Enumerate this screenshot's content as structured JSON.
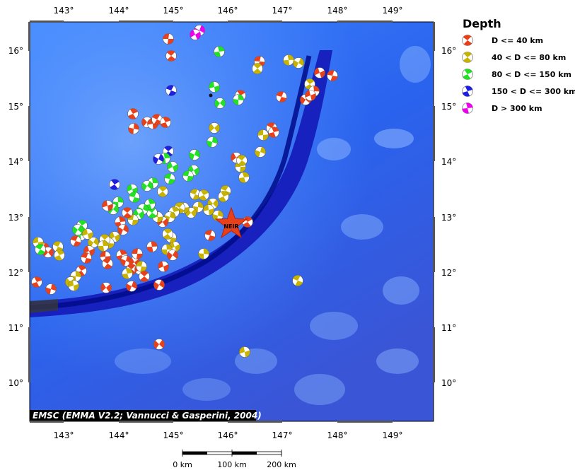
{
  "map": {
    "credit": "EMSC (EMMA V2.2; Vannucci & Gasperini, 2004)",
    "station_label": "NEIR",
    "lon_ticks": [
      "143°",
      "144°",
      "145°",
      "146°",
      "147°",
      "148°",
      "149°"
    ],
    "lat_ticks": [
      "16°",
      "15°",
      "14°",
      "13°",
      "12°",
      "11°",
      "10°"
    ]
  },
  "legend": {
    "title": "Depth",
    "items": [
      {
        "label": "D <= 40 km",
        "color": "#e8401a"
      },
      {
        "label": "40 < D <= 80 km",
        "color": "#c8b400"
      },
      {
        "label": "80 < D <= 150 km",
        "color": "#22e022"
      },
      {
        "label": "150 < D <= 300 km",
        "color": "#1e1ee0"
      },
      {
        "label": "D > 300 km",
        "color": "#ee00ee"
      }
    ]
  },
  "scale_bar": {
    "labels": [
      "0 km",
      "100 km",
      "200 km"
    ]
  }
}
